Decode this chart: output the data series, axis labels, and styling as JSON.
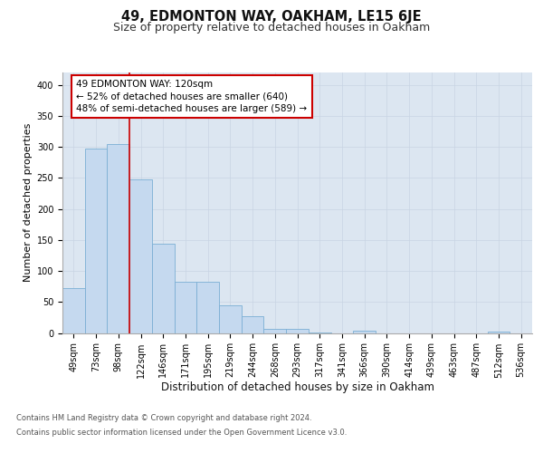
{
  "title": "49, EDMONTON WAY, OAKHAM, LE15 6JE",
  "subtitle": "Size of property relative to detached houses in Oakham",
  "xlabel": "Distribution of detached houses by size in Oakham",
  "ylabel": "Number of detached properties",
  "categories": [
    "49sqm",
    "73sqm",
    "98sqm",
    "122sqm",
    "146sqm",
    "171sqm",
    "195sqm",
    "219sqm",
    "244sqm",
    "268sqm",
    "293sqm",
    "317sqm",
    "341sqm",
    "366sqm",
    "390sqm",
    "414sqm",
    "439sqm",
    "463sqm",
    "487sqm",
    "512sqm",
    "536sqm"
  ],
  "values": [
    72,
    297,
    305,
    248,
    144,
    82,
    82,
    44,
    27,
    7,
    6,
    1,
    0,
    3,
    0,
    0,
    0,
    0,
    0,
    2,
    0
  ],
  "bar_color": "#c5d9ef",
  "bar_edge_color": "#7bafd4",
  "vline_x": 2.5,
  "vline_color": "#cc0000",
  "annotation_text": "49 EDMONTON WAY: 120sqm\n← 52% of detached houses are smaller (640)\n48% of semi-detached houses are larger (589) →",
  "annotation_box_facecolor": "#ffffff",
  "annotation_box_edgecolor": "#cc0000",
  "ylim": [
    0,
    420
  ],
  "yticks": [
    0,
    50,
    100,
    150,
    200,
    250,
    300,
    350,
    400
  ],
  "grid_color": "#c8d4e3",
  "ax_facecolor": "#dce6f1",
  "footer_line1": "Contains HM Land Registry data © Crown copyright and database right 2024.",
  "footer_line2": "Contains public sector information licensed under the Open Government Licence v3.0.",
  "title_fontsize": 10.5,
  "subtitle_fontsize": 9,
  "ylabel_fontsize": 8,
  "xlabel_fontsize": 8.5,
  "tick_fontsize": 7,
  "annotation_fontsize": 7.5,
  "footer_fontsize": 6
}
